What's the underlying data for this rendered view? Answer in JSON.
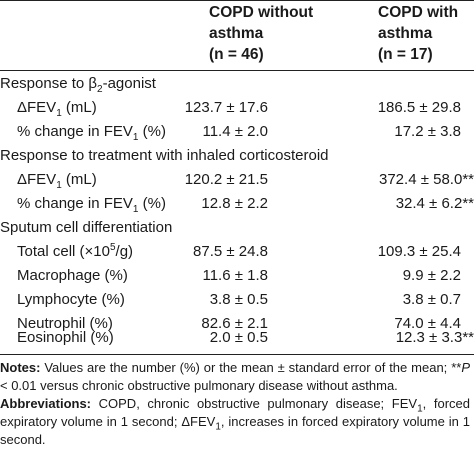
{
  "header": {
    "col1_line1": "COPD without",
    "col1_line2": "asthma",
    "col1_n": "(n = 46)",
    "col2_line1": "COPD with",
    "col2_line2": "asthma",
    "col2_n": "(n = 17)"
  },
  "sections": [
    {
      "title_pre": "Response to ",
      "title_beta": "β",
      "title_sub": "2",
      "title_post": "-agonist",
      "rows": [
        {
          "label_pre": "ΔFEV",
          "label_sub": "1",
          "label_post": " (mL)",
          "v1": "123.7 ± 17.6",
          "v2": "186.5 ± 29.8",
          "sig": ""
        },
        {
          "label_pre": "% change in FEV",
          "label_sub": "1",
          "label_post": " (%)",
          "v1": "11.4 ± 2.0",
          "v2": "17.2 ± 3.8",
          "sig": ""
        }
      ]
    },
    {
      "title": "Response to treatment with inhaled corticosteroid",
      "rows": [
        {
          "label_pre": "ΔFEV",
          "label_sub": "1",
          "label_post": " (mL)",
          "v1": "120.2 ± 21.5",
          "v2": "372.4 ± 58.0",
          "sig": "**"
        },
        {
          "label_pre": "% change in FEV",
          "label_sub": "1",
          "label_post": " (%)",
          "v1": "12.8 ± 2.2",
          "v2": "32.4 ± 6.2",
          "sig": "**"
        }
      ]
    },
    {
      "title": "Sputum cell differentiation",
      "rows": [
        {
          "label_pre": "Total cell (×10",
          "label_sup": "5",
          "label_post": "/g)",
          "v1": "87.5 ± 24.8",
          "v2": "109.3 ± 25.4",
          "sig": ""
        },
        {
          "label": "Macrophage (%)",
          "v1": "11.6 ± 1.8",
          "v2": "9.9 ± 2.2",
          "sig": ""
        },
        {
          "label": "Lymphocyte (%)",
          "v1": "3.8 ± 0.5",
          "v2": "3.8 ± 0.7",
          "sig": ""
        },
        {
          "label": "Neutrophil (%)",
          "v1": "82.6 ± 2.1",
          "v2": "74.0 ± 4.4",
          "sig": ""
        },
        {
          "label": "Eosinophil (%)",
          "v1": "2.0 ± 0.5",
          "v2": "12.3 ± 3.3",
          "sig": "**"
        }
      ]
    }
  ],
  "notes": {
    "notes_label": "Notes:",
    "notes_text": " Values are the number (%) or the mean ± standard error of the mean; ",
    "p_stars": "**",
    "p_letter": "P",
    "p_text": " < 0.01 versus chronic obstructive pulmonary disease without asthma.",
    "abbr_label": "Abbreviations:",
    "abbr_text1": " COPD, chronic obstructive pulmonary disease; FEV",
    "abbr_sub1": "1",
    "abbr_text2": ", forced expiratory volume in 1 second; ΔFEV",
    "abbr_sub2": "1",
    "abbr_text3": ", increases in forced expiratory volume in 1 second."
  }
}
